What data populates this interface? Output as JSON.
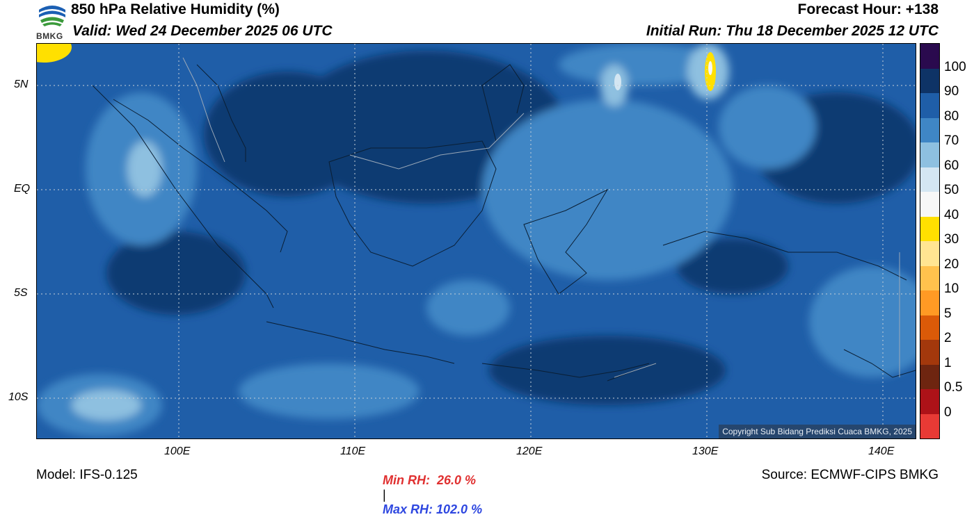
{
  "header": {
    "title": "850 hPa Relative Humidity (%)",
    "valid": "Valid: Wed 24 December 2025 06 UTC",
    "forecast_hour": "Forecast Hour: +138",
    "initial_run": "Initial Run: Thu 18 December 2025 12 UTC"
  },
  "logo": {
    "text": "BMKG"
  },
  "axes": {
    "lat_labels": [
      "5N",
      "EQ",
      "5S",
      "10S"
    ],
    "lon_labels": [
      "100E",
      "110E",
      "120E",
      "130E",
      "140E"
    ]
  },
  "map": {
    "copyright": "Copyright Sub Bidang Prediksi Cuaca BMKG, 2025"
  },
  "colorbar": {
    "labels": [
      "100",
      "90",
      "80",
      "70",
      "60",
      "50",
      "40",
      "30",
      "20",
      "10",
      "5",
      "2",
      "1",
      "0.5",
      "0"
    ],
    "colors": [
      "#2a0a4e",
      "#0e3366",
      "#1f5ea8",
      "#3f86c5",
      "#8ec0e0",
      "#d4e6f2",
      "#f7f7f7",
      "#ffe000",
      "#ffe592",
      "#ffc24d",
      "#ff9a24",
      "#db5a08",
      "#a3380c",
      "#6e2510",
      "#ad1218",
      "#e83a35"
    ]
  },
  "footer": {
    "model": "Model: IFS-0.125",
    "min_rh": "Min RH:  26.0 %",
    "separator": "|",
    "max_rh": "Max RH: 102.0 %",
    "source": "Source: ECMWF-CIPS BMKG"
  },
  "colors": {
    "min_rh": "#e03030",
    "max_rh": "#2e47e0",
    "sea_base": "#1f5ea8"
  }
}
